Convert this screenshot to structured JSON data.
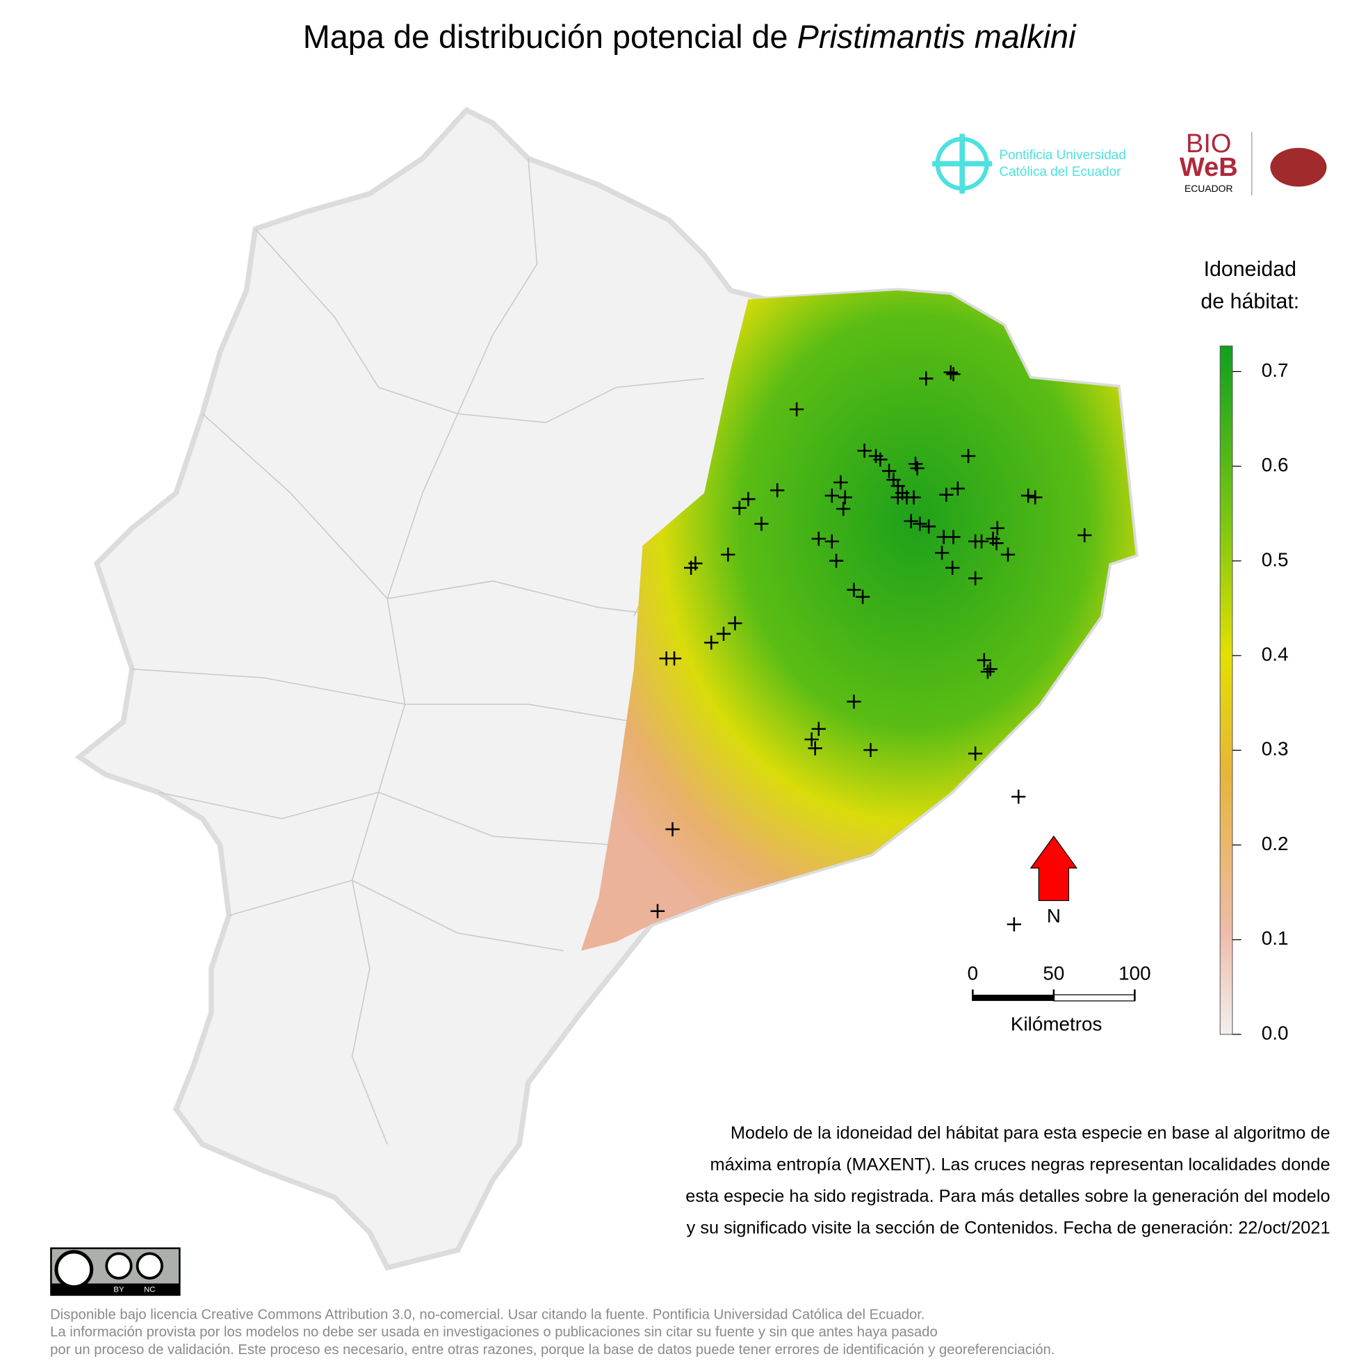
{
  "title": "Mapa de distribución potencial de ",
  "species": "Pristimantis malkini",
  "logos": {
    "puce_line1": "Pontificia Universidad",
    "puce_line2": "Católica del Ecuador",
    "bio": "BIO",
    "web": "WeB",
    "ecuador": "ECUADOR"
  },
  "legend": {
    "title_line1": "Idoneidad",
    "title_line2": "de hábitat:",
    "lim": [
      0,
      0.727
    ],
    "ticks": [
      {
        "value": 0,
        "label": "0.0"
      },
      0.1,
      0.2,
      0.3,
      0.4,
      0.5,
      0.6,
      0.7
    ]
  },
  "scale_bar": {
    "ticks": [
      0,
      50,
      100
    ],
    "label": "Kilómetros"
  },
  "north": "N",
  "description": [
    "Modelo de la idoneidad del hábitat para esta especie en base al algoritmo de",
    "máxima entropía (MAXENT). Las cruces negras representan localidades donde",
    "esta especie ha sido registrada. Para más detalles sobre la generación del modelo",
    "y su significado visite la sección de Contenidos. Fecha de generación: 22/oct/2021"
  ],
  "license_badge": {
    "by": "BY",
    "nc": "NC"
  },
  "license": [
    "Disponible bajo licencia Creative Commons Attribution 3.0, no-comercial. Usar citando la fuente. Pontificia Universidad Católica del Ecuador.",
    "La información provista por los modelos no debe ser usada en investigaciones o publicaciones sin citar su fuente y sin que antes haya pasado",
    "por un proceso de validación. Este proceso es necesario, entre otras razones, porque la base de datos puede tener errores de identificación y georeferenciación."
  ]
}
